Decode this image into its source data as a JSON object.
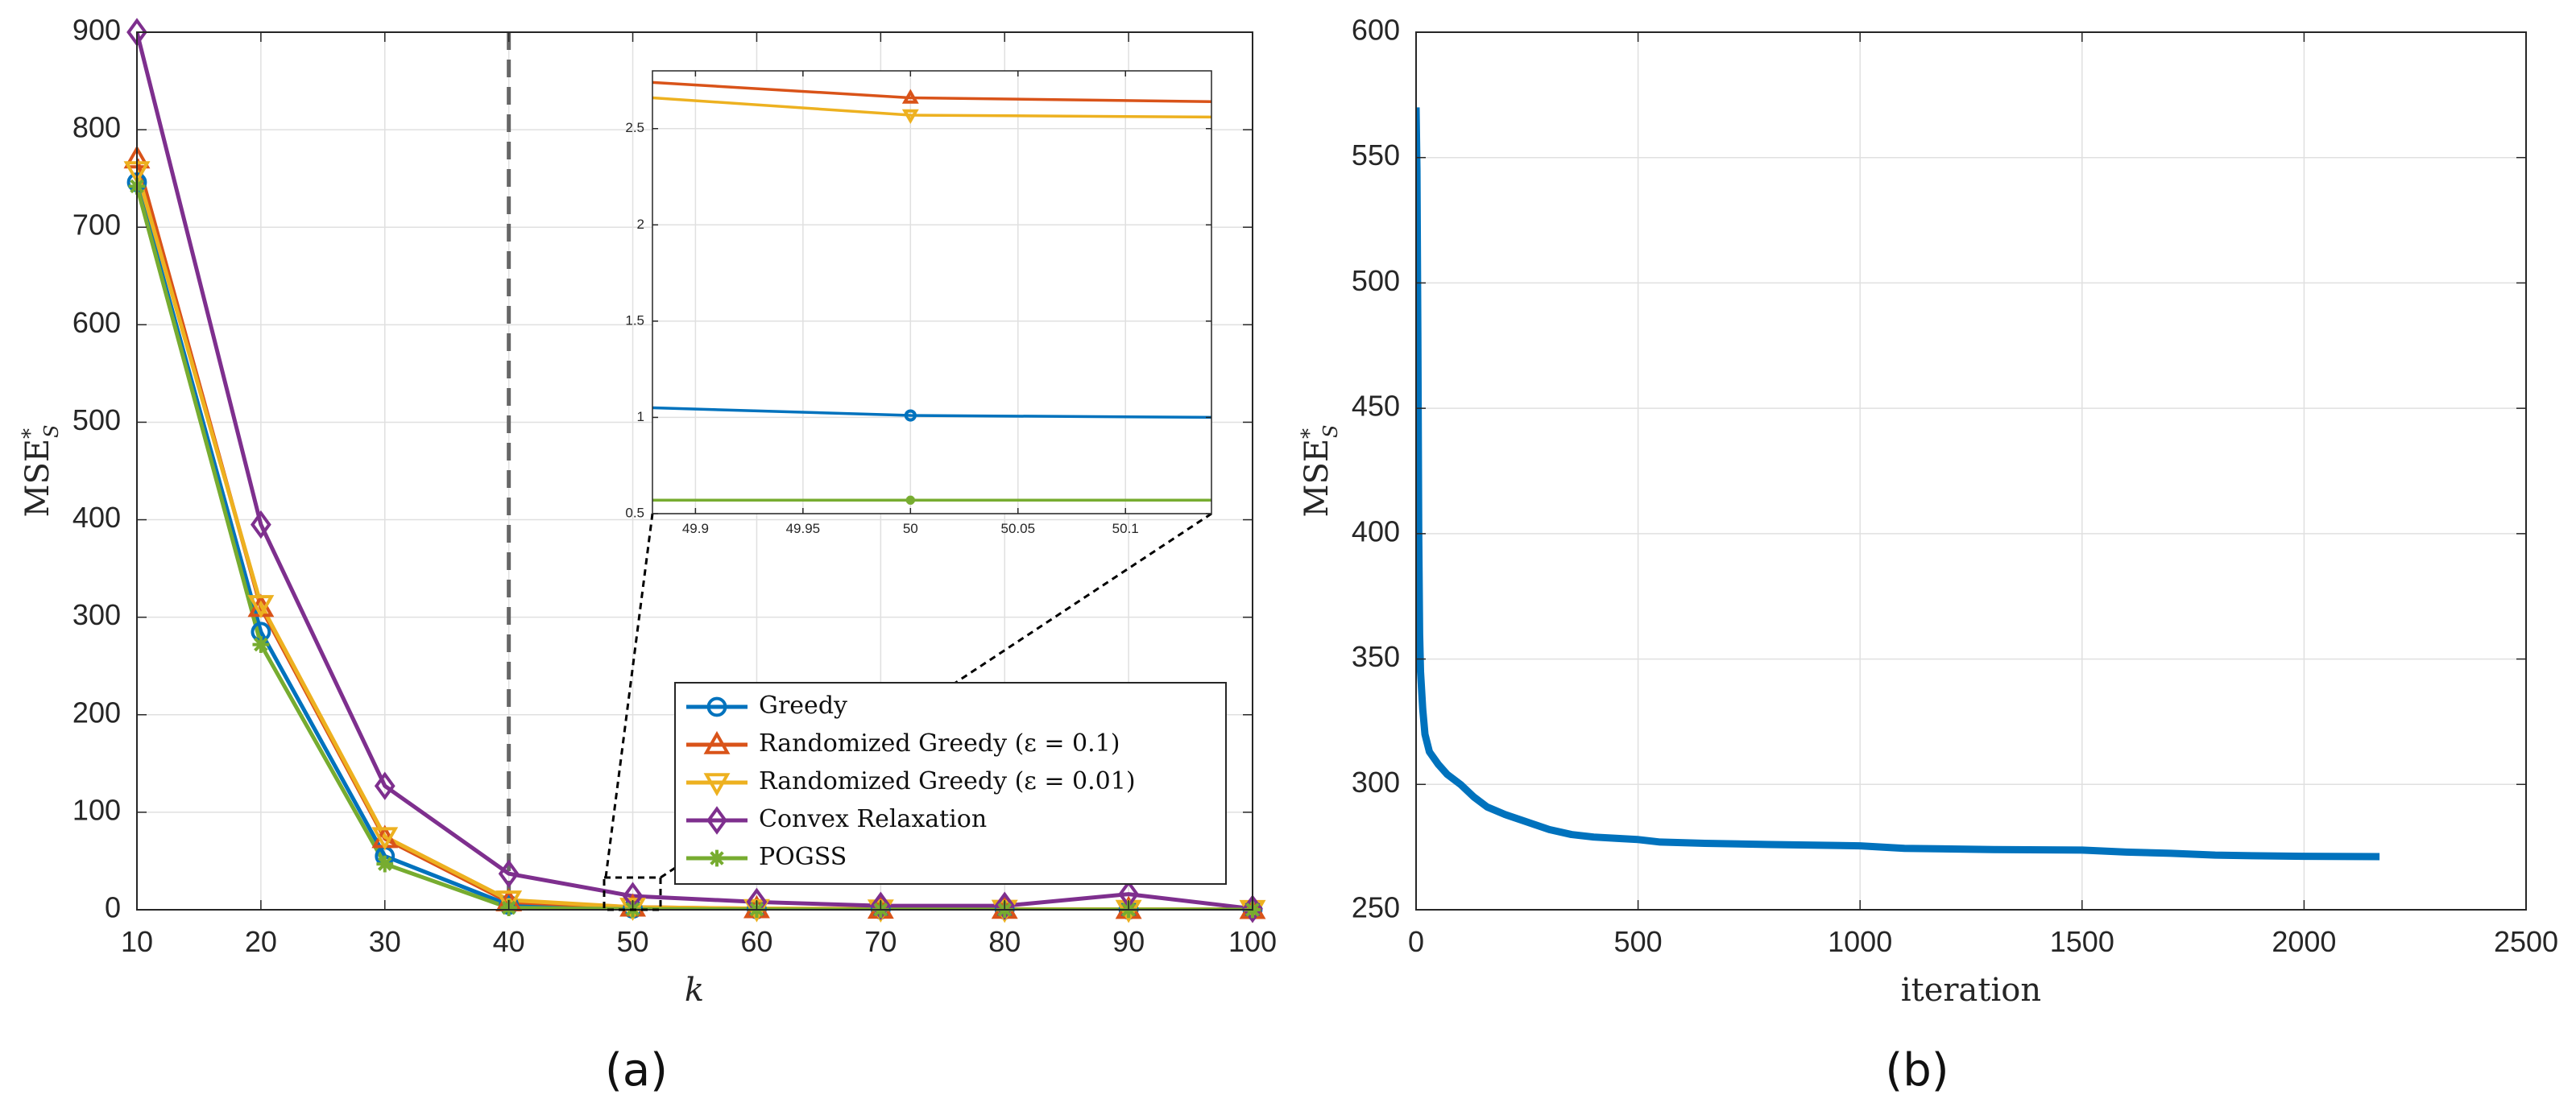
{
  "chart_data": [
    {
      "id": "a",
      "type": "line",
      "caption": "(a)",
      "xlabel": "k",
      "ylabel": "MSE",
      "ylabel_sup": "*",
      "ylabel_sub": "S",
      "xlim": [
        10,
        100
      ],
      "ylim": [
        0,
        900
      ],
      "xticks": [
        10,
        20,
        30,
        40,
        50,
        60,
        70,
        80,
        90,
        100
      ],
      "yticks": [
        0,
        100,
        200,
        300,
        400,
        500,
        600,
        700,
        800,
        900
      ],
      "grid": true,
      "vline_x": 40,
      "legend_position": "bottom-right",
      "x": [
        10,
        20,
        30,
        40,
        50,
        60,
        70,
        80,
        90,
        100
      ],
      "series": [
        {
          "name": "Greedy",
          "color": "#0072BD",
          "marker": "circle",
          "values": [
            746,
            285,
            55,
            5,
            1,
            0.5,
            0.3,
            0.2,
            0.1,
            0.05
          ]
        },
        {
          "name": "Randomized Greedy (ε = 0.1)",
          "color": "#D95319",
          "marker": "triangle-up",
          "values": [
            770,
            310,
            73,
            8,
            2.7,
            1,
            0.5,
            0.4,
            0.3,
            0.2
          ]
        },
        {
          "name": "Randomized Greedy (ε = 0.01)",
          "color": "#EDB120",
          "marker": "triangle-down",
          "values": [
            758,
            313,
            75,
            10,
            2.6,
            1.2,
            0.8,
            0.5,
            0.4,
            0.3
          ]
        },
        {
          "name": "Convex Relaxation",
          "color": "#7E2F8E",
          "marker": "diamond",
          "values": [
            900,
            395,
            127,
            37,
            14,
            8,
            4,
            4,
            16,
            1
          ]
        },
        {
          "name": "POGSS",
          "color": "#77AC30",
          "marker": "asterisk",
          "values": [
            742,
            272,
            47,
            2,
            0.58,
            0.3,
            0.2,
            0.15,
            0.1,
            0.05
          ]
        }
      ],
      "inset": {
        "xlim": [
          49.88,
          50.14
        ],
        "ylim": [
          0.5,
          2.8
        ],
        "xticks": [
          "49.9",
          "49.95",
          "50",
          "50.05",
          "50.1"
        ],
        "yticks": [
          "0.5",
          "1",
          "1.5",
          "2",
          "2.5"
        ],
        "lines": [
          {
            "name": "Randomized Greedy (ε = 0.1)",
            "y_start": 2.74,
            "y_mid": 2.66,
            "y_end": 2.64
          },
          {
            "name": "Randomized Greedy (ε = 0.01)",
            "y_start": 2.66,
            "y_mid": 2.57,
            "y_end": 2.56
          },
          {
            "name": "Greedy",
            "y_start": 1.05,
            "y_mid": 1.01,
            "y_end": 1.0
          },
          {
            "name": "POGSS",
            "y_start": 0.57,
            "y_mid": 0.57,
            "y_end": 0.57
          }
        ]
      }
    },
    {
      "id": "b",
      "type": "line",
      "caption": "(b)",
      "xlabel": "iteration",
      "ylabel": "MSE",
      "ylabel_sup": "*",
      "ylabel_sub": "S",
      "xlim": [
        0,
        2500
      ],
      "ylim": [
        250,
        600
      ],
      "xticks": [
        0,
        500,
        1000,
        1500,
        2000,
        2500
      ],
      "yticks": [
        250,
        300,
        350,
        400,
        450,
        500,
        550,
        600
      ],
      "grid": true,
      "series": [
        {
          "name": "MSE",
          "color": "#0072BD",
          "points": [
            [
              0,
              570
            ],
            [
              2,
              545
            ],
            [
              4,
              480
            ],
            [
              6,
              400
            ],
            [
              8,
              360
            ],
            [
              10,
              345
            ],
            [
              15,
              330
            ],
            [
              20,
              320
            ],
            [
              30,
              313
            ],
            [
              50,
              308
            ],
            [
              70,
              304
            ],
            [
              100,
              300
            ],
            [
              130,
              295
            ],
            [
              160,
              291
            ],
            [
              200,
              288
            ],
            [
              250,
              285
            ],
            [
              300,
              282
            ],
            [
              350,
              280
            ],
            [
              400,
              279
            ],
            [
              450,
              278.5
            ],
            [
              500,
              278
            ],
            [
              550,
              277
            ],
            [
              650,
              276.5
            ],
            [
              800,
              276
            ],
            [
              1000,
              275.5
            ],
            [
              1100,
              274.5
            ],
            [
              1300,
              274
            ],
            [
              1500,
              273.8
            ],
            [
              1600,
              273
            ],
            [
              1700,
              272.5
            ],
            [
              1800,
              271.8
            ],
            [
              1900,
              271.5
            ],
            [
              2000,
              271.3
            ],
            [
              2170,
              271.2
            ]
          ]
        }
      ]
    }
  ]
}
